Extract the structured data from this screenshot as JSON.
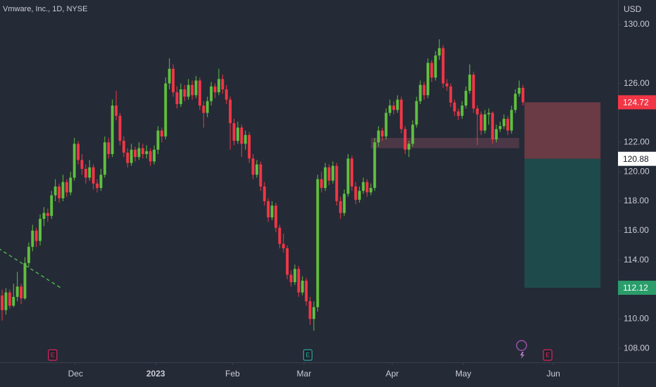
{
  "chart_data": {
    "type": "candlestick",
    "title": "Vmware, Inc., 1D, NYSE",
    "currency": "USD",
    "up_color": "#5fbf3f",
    "down_color": "#f23645",
    "grid": false,
    "xlim": [
      -0.56,
      162
    ],
    "ylim": [
      107.05,
      131.67
    ],
    "yticks": [
      {
        "value": 108,
        "label": "108.00"
      },
      {
        "value": 110,
        "label": "110.00"
      },
      {
        "value": 114,
        "label": "114.00"
      },
      {
        "value": 116,
        "label": "116.00"
      },
      {
        "value": 118,
        "label": "118.00"
      },
      {
        "value": 120,
        "label": "120.00"
      },
      {
        "value": 122,
        "label": "122.00"
      },
      {
        "value": 126,
        "label": "126.00"
      },
      {
        "value": 130,
        "label": "130.00"
      }
    ],
    "xticks": [
      {
        "value": 19.3,
        "label": "Dec"
      },
      {
        "value": 40.4,
        "label": "2023"
      },
      {
        "value": 60.6,
        "label": "Feb"
      },
      {
        "value": 79.4,
        "label": "Mar"
      },
      {
        "value": 102.6,
        "label": "Apr"
      },
      {
        "value": 121.3,
        "label": "May"
      },
      {
        "value": 145,
        "label": "Jun"
      }
    ],
    "ohlc": [
      [
        111.6,
        112.0,
        109.9,
        110.6
      ],
      [
        110.6,
        112.1,
        110.3,
        111.8
      ],
      [
        111.8,
        112.0,
        110.7,
        110.9
      ],
      [
        110.9,
        112.4,
        110.8,
        111.5
      ],
      [
        111.5,
        113.2,
        111.2,
        112.2
      ],
      [
        112.2,
        112.4,
        111.0,
        111.4
      ],
      [
        111.4,
        114.2,
        111.3,
        113.8
      ],
      [
        113.8,
        115.2,
        113.5,
        114.9
      ],
      [
        114.9,
        116.4,
        114.6,
        116.0
      ],
      [
        116.0,
        116.2,
        114.9,
        115.3
      ],
      [
        115.3,
        117.1,
        115.0,
        116.8
      ],
      [
        116.8,
        117.6,
        116.3,
        117.2
      ],
      [
        117.2,
        117.5,
        116.6,
        117.0
      ],
      [
        117.0,
        118.7,
        116.8,
        118.4
      ],
      [
        118.4,
        119.5,
        118.0,
        119.0
      ],
      [
        119.0,
        119.2,
        117.9,
        118.2
      ],
      [
        118.2,
        119.8,
        118.0,
        119.3
      ],
      [
        119.3,
        119.5,
        118.3,
        118.6
      ],
      [
        118.6,
        120.0,
        118.4,
        119.6
      ],
      [
        119.6,
        122.3,
        119.4,
        121.9
      ],
      [
        121.9,
        122.1,
        120.5,
        120.8
      ],
      [
        120.8,
        121.2,
        119.8,
        120.2
      ],
      [
        120.2,
        120.5,
        119.2,
        119.6
      ],
      [
        119.6,
        120.8,
        119.4,
        120.3
      ],
      [
        120.3,
        120.5,
        118.8,
        119.2
      ],
      [
        119.2,
        119.5,
        118.6,
        118.9
      ],
      [
        118.9,
        120.2,
        118.7,
        119.8
      ],
      [
        119.8,
        122.4,
        119.6,
        122.0
      ],
      [
        122.0,
        122.3,
        120.9,
        121.2
      ],
      [
        121.2,
        124.9,
        121.0,
        124.5
      ],
      [
        124.5,
        125.5,
        123.5,
        123.8
      ],
      [
        123.8,
        124.0,
        121.8,
        122.1
      ],
      [
        122.1,
        122.4,
        121.0,
        121.3
      ],
      [
        121.3,
        121.6,
        120.3,
        120.6
      ],
      [
        120.6,
        121.9,
        120.4,
        121.5
      ],
      [
        121.5,
        121.7,
        120.7,
        121.0
      ],
      [
        121.0,
        122.0,
        120.8,
        121.6
      ],
      [
        121.6,
        121.9,
        120.9,
        121.2
      ],
      [
        121.2,
        121.8,
        120.9,
        121.4
      ],
      [
        121.4,
        121.6,
        120.4,
        120.7
      ],
      [
        120.7,
        121.8,
        120.5,
        121.5
      ],
      [
        121.5,
        123.1,
        121.2,
        122.8
      ],
      [
        122.8,
        123.0,
        122.0,
        122.4
      ],
      [
        122.4,
        126.4,
        122.2,
        126.0
      ],
      [
        126.0,
        127.7,
        125.6,
        127.0
      ],
      [
        127.0,
        127.3,
        125.1,
        125.4
      ],
      [
        125.4,
        125.8,
        124.3,
        124.6
      ],
      [
        124.6,
        126.0,
        124.4,
        125.6
      ],
      [
        125.6,
        125.9,
        124.8,
        125.1
      ],
      [
        125.1,
        126.3,
        124.9,
        125.9
      ],
      [
        125.9,
        126.2,
        124.9,
        125.2
      ],
      [
        125.2,
        126.5,
        125.0,
        126.2
      ],
      [
        126.2,
        126.4,
        124.2,
        124.5
      ],
      [
        124.5,
        124.8,
        123.0,
        124.0
      ],
      [
        124.0,
        125.1,
        123.7,
        124.8
      ],
      [
        124.8,
        126.1,
        124.5,
        125.8
      ],
      [
        125.8,
        126.0,
        125.0,
        125.4
      ],
      [
        125.4,
        127.0,
        125.2,
        126.3
      ],
      [
        126.3,
        126.6,
        125.3,
        125.6
      ],
      [
        125.6,
        125.9,
        124.6,
        124.9
      ],
      [
        124.9,
        125.1,
        121.5,
        123.3
      ],
      [
        123.3,
        123.6,
        121.8,
        122.1
      ],
      [
        122.1,
        123.4,
        121.9,
        123.0
      ],
      [
        123.0,
        123.2,
        121.0,
        121.9
      ],
      [
        121.9,
        122.8,
        121.5,
        122.5
      ],
      [
        122.5,
        122.7,
        120.6,
        120.9
      ],
      [
        120.9,
        121.2,
        119.5,
        119.8
      ],
      [
        119.8,
        120.8,
        119.6,
        120.5
      ],
      [
        120.5,
        120.7,
        118.7,
        119.0
      ],
      [
        119.0,
        119.3,
        117.7,
        118.0
      ],
      [
        118.0,
        118.2,
        116.6,
        116.9
      ],
      [
        116.9,
        118.0,
        116.7,
        117.7
      ],
      [
        117.7,
        117.9,
        115.9,
        116.2
      ],
      [
        116.2,
        116.4,
        114.8,
        115.1
      ],
      [
        115.1,
        115.8,
        114.5,
        114.8
      ],
      [
        114.8,
        115.0,
        112.7,
        113.0
      ],
      [
        113.0,
        113.3,
        112.2,
        112.5
      ],
      [
        112.5,
        113.7,
        112.3,
        113.4
      ],
      [
        113.4,
        113.6,
        111.5,
        111.8
      ],
      [
        111.8,
        112.9,
        111.6,
        112.6
      ],
      [
        112.6,
        112.8,
        110.9,
        111.2
      ],
      [
        111.2,
        111.5,
        109.6,
        110.0
      ],
      [
        110.0,
        111.2,
        109.2,
        110.8
      ],
      [
        110.8,
        119.8,
        110.5,
        119.5
      ],
      [
        119.5,
        120.0,
        118.6,
        118.9
      ],
      [
        118.9,
        120.6,
        118.7,
        120.3
      ],
      [
        120.3,
        120.5,
        119.1,
        119.4
      ],
      [
        119.4,
        120.7,
        119.2,
        120.4
      ],
      [
        120.4,
        120.6,
        117.7,
        118.0
      ],
      [
        118.0,
        118.3,
        116.8,
        117.2
      ],
      [
        117.2,
        118.8,
        117.0,
        118.5
      ],
      [
        118.5,
        121.2,
        118.3,
        120.9
      ],
      [
        120.9,
        121.1,
        118.7,
        119.0
      ],
      [
        119.0,
        119.3,
        117.8,
        118.1
      ],
      [
        118.1,
        119.0,
        117.9,
        118.7
      ],
      [
        118.7,
        119.6,
        118.5,
        119.3
      ],
      [
        119.3,
        119.5,
        118.3,
        118.6
      ],
      [
        118.6,
        119.2,
        118.4,
        118.9
      ],
      [
        118.9,
        122.3,
        118.7,
        122.0
      ],
      [
        122.0,
        123.1,
        121.7,
        122.8
      ],
      [
        122.8,
        123.0,
        122.1,
        122.4
      ],
      [
        122.4,
        124.3,
        122.2,
        124.0
      ],
      [
        124.0,
        124.9,
        123.8,
        124.5
      ],
      [
        124.5,
        124.8,
        123.9,
        124.2
      ],
      [
        124.2,
        125.2,
        124.0,
        124.9
      ],
      [
        124.9,
        125.1,
        122.6,
        122.9
      ],
      [
        122.9,
        123.1,
        121.2,
        121.5
      ],
      [
        121.5,
        122.1,
        121.0,
        121.9
      ],
      [
        121.9,
        123.5,
        121.7,
        123.2
      ],
      [
        123.2,
        125.1,
        123.0,
        124.8
      ],
      [
        124.8,
        126.2,
        124.6,
        125.9
      ],
      [
        125.9,
        126.1,
        124.9,
        125.2
      ],
      [
        125.2,
        127.7,
        125.0,
        127.4
      ],
      [
        127.4,
        127.6,
        126.1,
        126.4
      ],
      [
        126.4,
        128.2,
        126.2,
        127.9
      ],
      [
        127.9,
        129.0,
        127.6,
        128.4
      ],
      [
        128.4,
        128.6,
        125.7,
        126.0
      ],
      [
        126.0,
        126.3,
        125.5,
        125.8
      ],
      [
        125.8,
        126.0,
        124.4,
        124.7
      ],
      [
        124.7,
        124.9,
        123.8,
        124.1
      ],
      [
        124.1,
        124.3,
        123.5,
        123.8
      ],
      [
        123.8,
        124.8,
        123.6,
        124.5
      ],
      [
        124.5,
        125.8,
        124.3,
        125.5
      ],
      [
        125.5,
        127.3,
        125.3,
        126.6
      ],
      [
        126.6,
        126.8,
        124.0,
        124.3
      ],
      [
        124.3,
        124.5,
        121.8,
        123.9
      ],
      [
        123.9,
        124.1,
        122.5,
        122.8
      ],
      [
        122.8,
        124.2,
        122.6,
        123.9
      ],
      [
        123.9,
        124.3,
        123.2,
        124.0
      ],
      [
        124.0,
        124.1,
        121.9,
        122.2
      ],
      [
        122.2,
        123.2,
        122.0,
        122.9
      ],
      [
        122.9,
        123.4,
        122.7,
        123.1
      ],
      [
        123.1,
        123.9,
        122.9,
        123.6
      ],
      [
        123.6,
        123.8,
        122.5,
        122.8
      ],
      [
        122.8,
        124.5,
        122.6,
        124.2
      ],
      [
        124.2,
        125.6,
        124.0,
        125.3
      ],
      [
        125.3,
        126.2,
        125.1,
        125.7
      ],
      [
        125.7,
        125.9,
        124.5,
        124.72
      ]
    ],
    "zone": {
      "start": 97,
      "end": 136,
      "low": 121.6,
      "high": 122.3,
      "color": "#4b3745"
    },
    "trendline": {
      "x": [
        -1,
        15.5
      ],
      "y": [
        114.8,
        112.1
      ],
      "color": "#4caf50"
    },
    "position": {
      "start": 137.4,
      "end": 157.4,
      "entry": 124.72,
      "stop": 120.88,
      "target": 112.12,
      "risk_color": "#6a3b45",
      "reward_color": "#1f4a4c",
      "entry_color": "#f23645",
      "target_color": "#2a9d6a"
    },
    "events": [
      {
        "index": 13.3,
        "label": "E",
        "color": "#e0245e"
      },
      {
        "index": 80.4,
        "label": "E",
        "color": "#26a69a"
      },
      {
        "index": 143.5,
        "label": "E",
        "color": "#e0245e"
      }
    ]
  }
}
